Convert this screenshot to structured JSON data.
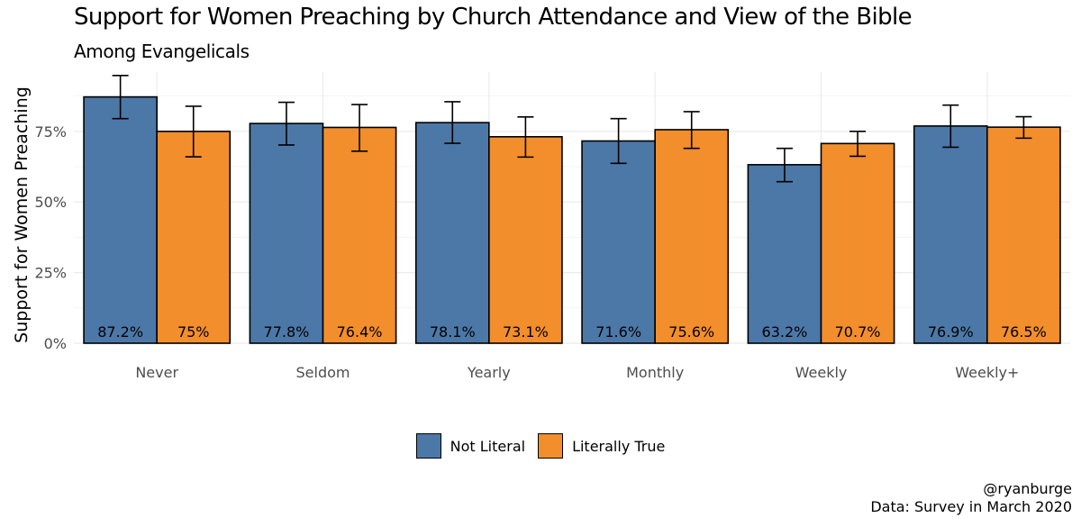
{
  "title": "Support for Women Preaching by Church Attendance and View of the Bible",
  "subtitle": "Among Evangelicals",
  "caption": {
    "line1": "@ryanburge",
    "line2": "Data: Survey in March 2020"
  },
  "legend": [
    {
      "label": "Not Literal",
      "color": "#4c78a8"
    },
    {
      "label": "Literally True",
      "color": "#f28e2b"
    }
  ],
  "chart_data": {
    "type": "bar",
    "title": "Support for Women Preaching by Church Attendance and View of the Bible",
    "subtitle": "Among Evangelicals",
    "xlabel": "",
    "ylabel": "Support for Women Preaching",
    "ylim": [
      0,
      0.96
    ],
    "yticks": [
      0,
      0.25,
      0.5,
      0.75
    ],
    "ytick_labels": [
      "0%",
      "25%",
      "50%",
      "75%"
    ],
    "grid": true,
    "legend_position": "bottom",
    "categories": [
      "Never",
      "Seldom",
      "Yearly",
      "Monthly",
      "Weekly",
      "Weekly+"
    ],
    "series": [
      {
        "name": "Not Literal",
        "color": "#4c78a8",
        "values": [
          0.872,
          0.778,
          0.781,
          0.716,
          0.632,
          0.769
        ],
        "labels": [
          "87.2%",
          "77.8%",
          "78.1%",
          "71.6%",
          "63.2%",
          "76.9%"
        ],
        "ci_low": [
          0.795,
          0.702,
          0.708,
          0.637,
          0.572,
          0.694
        ],
        "ci_high": [
          0.948,
          0.853,
          0.855,
          0.795,
          0.69,
          0.843
        ]
      },
      {
        "name": "Literally True",
        "color": "#f28e2b",
        "values": [
          0.75,
          0.764,
          0.731,
          0.756,
          0.707,
          0.765
        ],
        "labels": [
          "75%",
          "76.4%",
          "73.1%",
          "75.6%",
          "70.7%",
          "76.5%"
        ],
        "ci_low": [
          0.66,
          0.68,
          0.659,
          0.69,
          0.662,
          0.726
        ],
        "ci_high": [
          0.839,
          0.845,
          0.801,
          0.82,
          0.75,
          0.802
        ]
      }
    ]
  }
}
